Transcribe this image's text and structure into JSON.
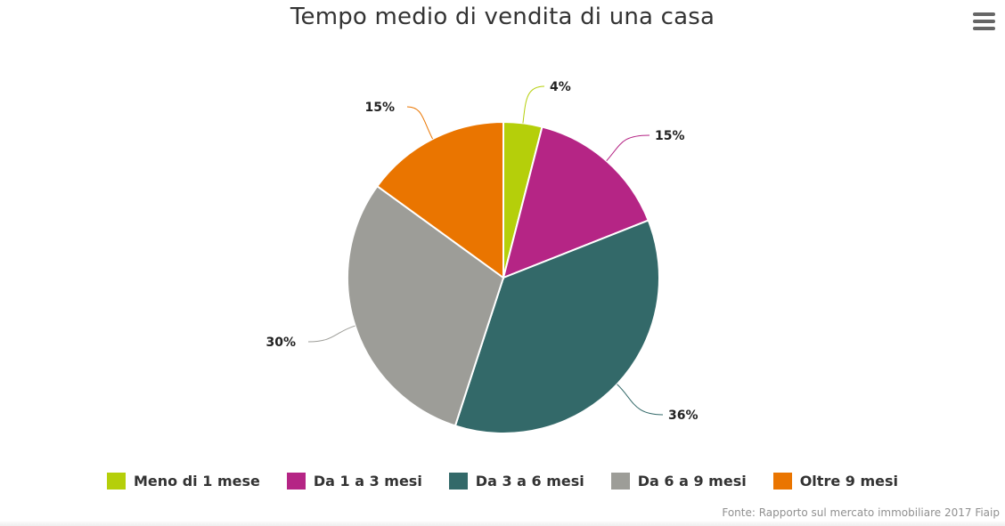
{
  "header": {
    "title": "Tempo medio di vendita di una casa",
    "menu_icon": "hamburger-menu-icon"
  },
  "chart_data": {
    "type": "pie",
    "title": "Tempo medio di vendita di una casa",
    "categories": [
      "Meno di 1 mese",
      "Da 1 a 3 mesi",
      "Da 3 a 6 mesi",
      "Da 6 a 9 mesi",
      "Oltre 9 mesi"
    ],
    "values": [
      4,
      15,
      36,
      30,
      15
    ],
    "labels": [
      "4%",
      "15%",
      "36%",
      "30%",
      "15%"
    ],
    "colors": [
      "#b5cf0a",
      "#b52585",
      "#336969",
      "#9d9d98",
      "#ea7500"
    ],
    "unit": "%",
    "start_angle": "top, clockwise",
    "legend_position": "bottom"
  },
  "legend": {
    "items": [
      {
        "label": "Meno di 1 mese",
        "color": "#b5cf0a"
      },
      {
        "label": "Da 1 a 3 mesi",
        "color": "#b52585"
      },
      {
        "label": "Da 3 a 6 mesi",
        "color": "#336969"
      },
      {
        "label": "Da 6 a 9 mesi",
        "color": "#9d9d98"
      },
      {
        "label": "Oltre 9 mesi",
        "color": "#ea7500"
      }
    ]
  },
  "credits": {
    "text": "Fonte: Rapporto sul mercato immobiliare 2017 Fiaip"
  }
}
